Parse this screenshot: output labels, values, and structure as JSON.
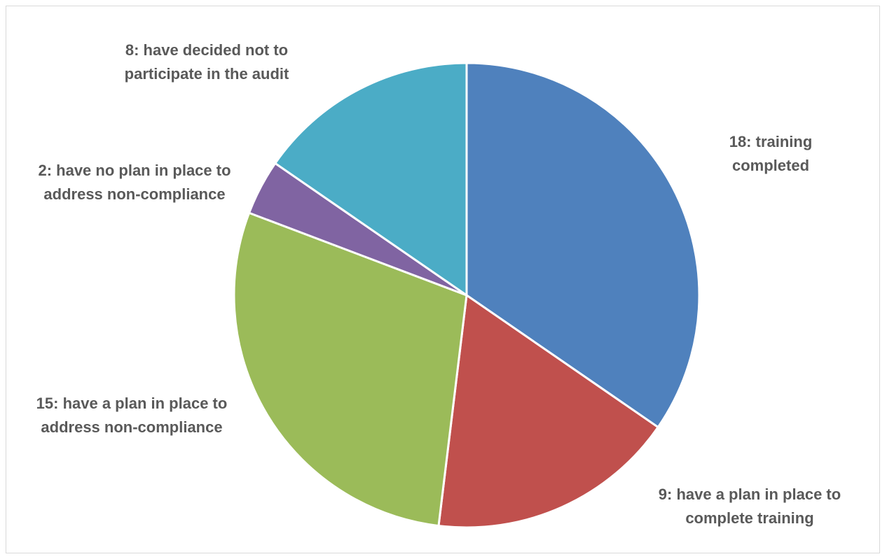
{
  "chart_data": {
    "type": "pie",
    "slices": [
      {
        "label": "18: training completed",
        "lines": [
          "18: training",
          "completed"
        ],
        "value": 18,
        "color": "#4F81BD"
      },
      {
        "label": "9: have a plan in place to complete training",
        "lines": [
          "9: have a plan in place to",
          "complete training"
        ],
        "value": 9,
        "color": "#C0504D"
      },
      {
        "label": "15: have a plan in place  to address non-compliance",
        "lines": [
          "15: have a plan in place  to",
          "address non-compliance"
        ],
        "value": 15,
        "color": "#9BBB59"
      },
      {
        "label": "2: have no plan in place to address non-compliance",
        "lines": [
          "2: have no plan in place to",
          "address non-compliance"
        ],
        "value": 2,
        "color": "#8064A2"
      },
      {
        "label": "8: have decided not to participate in the audit",
        "lines": [
          "8: have decided not to",
          "participate in the audit"
        ],
        "value": 8,
        "color": "#4BACC6"
      }
    ],
    "start_angle": "12 o'clock",
    "direction": "clockwise",
    "legend": "none",
    "data_labels": "outside"
  }
}
